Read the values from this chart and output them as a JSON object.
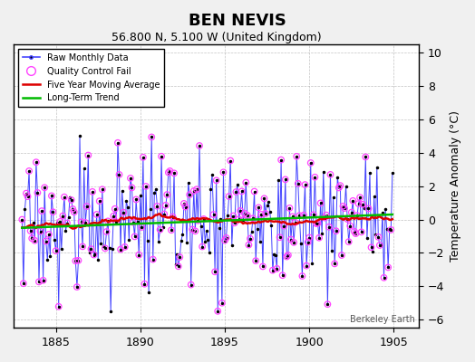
{
  "title": "BEN NEVIS",
  "subtitle": "56.800 N, 5.100 W (United Kingdom)",
  "ylabel": "Temperature Anomaly (°C)",
  "watermark": "Berkeley Earth",
  "xlim": [
    1882.5,
    1906.5
  ],
  "ylim": [
    -6.5,
    10.5
  ],
  "yticks": [
    -6,
    -4,
    -2,
    0,
    2,
    4,
    6,
    8,
    10
  ],
  "xticks": [
    1885,
    1890,
    1895,
    1900,
    1905
  ],
  "bg_color": "#f0f0f0",
  "plot_bg": "#ffffff",
  "raw_line_color": "#4444ff",
  "raw_dot_color": "#000000",
  "qc_color": "#ff44ff",
  "ma_color": "#dd0000",
  "trend_color": "#00bb00",
  "title_fontsize": 13,
  "subtitle_fontsize": 9,
  "axis_fontsize": 9,
  "seed": 17,
  "n_months": 264,
  "start_year": 1883.0
}
